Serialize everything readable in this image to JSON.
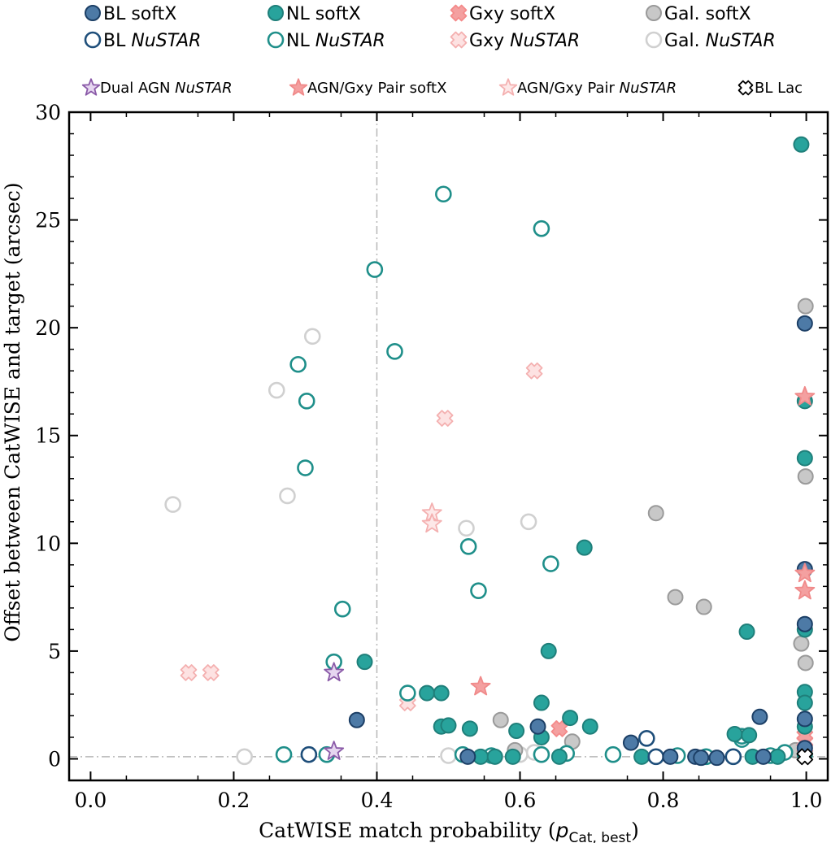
{
  "chart_data": {
    "type": "scatter",
    "title": "",
    "xlabel": "CatWISE match probability",
    "xlabel_symbol": "p",
    "xlabel_subscript": "Cat, best",
    "ylabel": "Offset between CatWISE and target (arcsec)",
    "xlim": [
      -0.03,
      1.03
    ],
    "ylim": [
      -1,
      30
    ],
    "x_ticks": [
      0.0,
      0.2,
      0.4,
      0.6,
      0.8,
      1.0
    ],
    "x_tick_labels": [
      "0.0",
      "0.2",
      "0.4",
      "0.6",
      "0.8",
      "1.0"
    ],
    "y_ticks": [
      0,
      5,
      10,
      15,
      20,
      25,
      30
    ],
    "y_tick_labels": [
      "0",
      "5",
      "10",
      "15",
      "20",
      "25",
      "30"
    ],
    "reference_lines": [
      {
        "orientation": "vertical",
        "value": 0.4,
        "style": "dash-dot"
      },
      {
        "orientation": "horizontal",
        "value": 0.1,
        "style": "dash-dot"
      }
    ],
    "legend": [
      {
        "row": 1,
        "label": "BL softX",
        "label_parts": [
          {
            "t": "BL softX"
          }
        ],
        "series": "bl_soft"
      },
      {
        "row": 1,
        "label": "NL softX",
        "label_parts": [
          {
            "t": "NL softX"
          }
        ],
        "series": "nl_soft"
      },
      {
        "row": 1,
        "label": "Gxy softX",
        "label_parts": [
          {
            "t": "Gxy softX"
          }
        ],
        "series": "gxy_soft"
      },
      {
        "row": 1,
        "label": "Gal. softX",
        "label_parts": [
          {
            "t": "Gal. softX"
          }
        ],
        "series": "gal_soft"
      },
      {
        "row": 2,
        "label": "BL NuSTAR",
        "label_parts": [
          {
            "t": "BL "
          },
          {
            "t": "NuSTAR",
            "i": true
          }
        ],
        "series": "bl_nustar"
      },
      {
        "row": 2,
        "label": "NL NuSTAR",
        "label_parts": [
          {
            "t": "NL "
          },
          {
            "t": "NuSTAR",
            "i": true
          }
        ],
        "series": "nl_nustar"
      },
      {
        "row": 2,
        "label": "Gxy NuSTAR",
        "label_parts": [
          {
            "t": "Gxy "
          },
          {
            "t": "NuSTAR",
            "i": true
          }
        ],
        "series": "gxy_nustar"
      },
      {
        "row": 2,
        "label": "Gal. NuSTAR",
        "label_parts": [
          {
            "t": "Gal. "
          },
          {
            "t": "NuSTAR",
            "i": true
          }
        ],
        "series": "gal_nustar"
      },
      {
        "row": 3,
        "label": "Dual AGN NuSTAR",
        "label_parts": [
          {
            "t": "Dual AGN "
          },
          {
            "t": "NuSTAR",
            "i": true
          }
        ],
        "series": "dual_nustar"
      },
      {
        "row": 3,
        "label": "AGN/Gxy Pair softX",
        "label_parts": [
          {
            "t": "AGN/Gxy Pair softX"
          }
        ],
        "series": "pair_soft"
      },
      {
        "row": 3,
        "label": "AGN/Gxy Pair NuSTAR",
        "label_parts": [
          {
            "t": "AGN/Gxy Pair "
          },
          {
            "t": "NuSTAR",
            "i": true
          }
        ],
        "series": "pair_nustar"
      },
      {
        "row": 3,
        "label": "BL Lac",
        "label_parts": [
          {
            "t": "BL Lac"
          }
        ],
        "series": "bllac"
      }
    ],
    "series": [
      {
        "id": "gal_nustar",
        "name": "Gal. NuSTAR",
        "marker": "circle",
        "filled": false,
        "edge": "#d0d0d0",
        "fill": "#ffffff",
        "points": [
          [
            0.115,
            11.8
          ],
          [
            0.215,
            0.1
          ],
          [
            0.26,
            17.1
          ],
          [
            0.275,
            12.2
          ],
          [
            0.31,
            19.6
          ],
          [
            0.5,
            0.15
          ],
          [
            0.525,
            10.7
          ],
          [
            0.612,
            11.0
          ],
          [
            0.6,
            0.2
          ],
          [
            0.62,
            0.3
          ]
        ]
      },
      {
        "id": "gal_soft",
        "name": "Gal. softX",
        "marker": "circle",
        "filled": true,
        "edge": "#9a9a9a",
        "fill": "#c8c8c8",
        "points": [
          [
            0.573,
            1.8
          ],
          [
            0.593,
            0.4
          ],
          [
            0.673,
            0.8
          ],
          [
            0.79,
            11.4
          ],
          [
            0.817,
            7.5
          ],
          [
            0.857,
            7.05
          ],
          [
            0.993,
            5.35
          ],
          [
            0.999,
            21.0
          ],
          [
            0.999,
            13.1
          ],
          [
            0.999,
            4.45
          ],
          [
            0.985,
            0.4
          ]
        ]
      },
      {
        "id": "gxy_nustar",
        "name": "Gxy NuSTAR",
        "marker": "x",
        "filled": false,
        "edge": "#f4b0b0",
        "fill": "#fde2e2",
        "points": [
          [
            0.137,
            4.0
          ],
          [
            0.168,
            4.0
          ],
          [
            0.443,
            2.6
          ],
          [
            0.495,
            15.8
          ],
          [
            0.62,
            18.0
          ],
          [
            0.998,
            0.8
          ]
        ]
      },
      {
        "id": "gxy_soft",
        "name": "Gxy softX",
        "marker": "x",
        "filled": true,
        "edge": "#f48a8a",
        "fill": "#f4a0a0",
        "points": [
          [
            0.655,
            1.4
          ],
          [
            0.998,
            1.1
          ],
          [
            0.998,
            0.5
          ]
        ]
      },
      {
        "id": "nl_nustar",
        "name": "NL NuSTAR",
        "marker": "circle",
        "filled": false,
        "edge": "#1f8f8a",
        "fill": "#ffffff",
        "points": [
          [
            0.27,
            0.2
          ],
          [
            0.33,
            0.2
          ],
          [
            0.397,
            22.7
          ],
          [
            0.425,
            18.9
          ],
          [
            0.29,
            18.3
          ],
          [
            0.302,
            16.6
          ],
          [
            0.3,
            13.5
          ],
          [
            0.352,
            6.95
          ],
          [
            0.34,
            4.5
          ],
          [
            0.443,
            3.05
          ],
          [
            0.493,
            26.2
          ],
          [
            0.63,
            24.6
          ],
          [
            0.528,
            9.85
          ],
          [
            0.542,
            7.8
          ],
          [
            0.643,
            9.05
          ],
          [
            0.52,
            0.2
          ],
          [
            0.56,
            0.15
          ],
          [
            0.63,
            0.2
          ],
          [
            0.665,
            0.25
          ],
          [
            0.73,
            0.2
          ],
          [
            0.82,
            0.15
          ],
          [
            0.86,
            0.1
          ],
          [
            0.91,
            0.9
          ],
          [
            0.91,
            1.05
          ],
          [
            0.95,
            0.15
          ],
          [
            0.97,
            0.3
          ]
        ]
      },
      {
        "id": "nl_soft",
        "name": "NL softX",
        "marker": "circle",
        "filled": true,
        "edge": "#1f7f7a",
        "fill": "#28a39c",
        "points": [
          [
            0.993,
            28.5
          ],
          [
            0.383,
            4.5
          ],
          [
            0.47,
            3.05
          ],
          [
            0.49,
            3.05
          ],
          [
            0.49,
            1.5
          ],
          [
            0.5,
            1.55
          ],
          [
            0.53,
            1.4
          ],
          [
            0.595,
            1.3
          ],
          [
            0.63,
            2.6
          ],
          [
            0.63,
            1.0
          ],
          [
            0.64,
            5.0
          ],
          [
            0.69,
            9.8
          ],
          [
            0.67,
            1.9
          ],
          [
            0.698,
            1.5
          ],
          [
            0.917,
            5.9
          ],
          [
            0.9,
            1.15
          ],
          [
            0.92,
            1.1
          ],
          [
            0.998,
            16.6
          ],
          [
            0.998,
            13.95
          ],
          [
            0.998,
            6.0
          ],
          [
            0.998,
            3.1
          ],
          [
            0.998,
            2.6
          ],
          [
            0.998,
            1.5
          ],
          [
            0.998,
            0.2
          ],
          [
            0.545,
            0.1
          ],
          [
            0.565,
            0.1
          ],
          [
            0.59,
            0.1
          ],
          [
            0.655,
            0.1
          ],
          [
            0.77,
            0.1
          ],
          [
            0.925,
            0.1
          ],
          [
            0.96,
            0.1
          ]
        ]
      },
      {
        "id": "bl_nustar",
        "name": "BL NuSTAR",
        "marker": "circle",
        "filled": false,
        "edge": "#1e4e7a",
        "fill": "#ffffff",
        "points": [
          [
            0.305,
            0.2
          ],
          [
            0.777,
            0.95
          ],
          [
            0.79,
            0.1
          ],
          [
            0.898,
            0.1
          ]
        ]
      },
      {
        "id": "bl_soft",
        "name": "BL softX",
        "marker": "circle",
        "filled": true,
        "edge": "#1c3f66",
        "fill": "#4d7aa6",
        "points": [
          [
            0.372,
            1.8
          ],
          [
            0.527,
            0.1
          ],
          [
            0.625,
            1.5
          ],
          [
            0.755,
            0.75
          ],
          [
            0.81,
            0.1
          ],
          [
            0.845,
            0.1
          ],
          [
            0.853,
            0.05
          ],
          [
            0.875,
            0.05
          ],
          [
            0.935,
            1.95
          ],
          [
            0.94,
            0.1
          ],
          [
            0.998,
            20.2
          ],
          [
            0.998,
            8.8
          ],
          [
            0.998,
            6.25
          ],
          [
            0.998,
            1.85
          ],
          [
            0.998,
            0.5
          ]
        ]
      },
      {
        "id": "dual_nustar",
        "name": "Dual AGN NuSTAR",
        "marker": "star",
        "filled": true,
        "edge": "#8a5aa8",
        "fill": "#e6d6f0",
        "points": [
          [
            0.34,
            4.0
          ],
          [
            0.34,
            0.35
          ]
        ]
      },
      {
        "id": "pair_soft",
        "name": "AGN/Gxy Pair softX",
        "marker": "star",
        "filled": true,
        "edge": "#f08a8a",
        "fill": "#f4a0a0",
        "points": [
          [
            0.545,
            3.35
          ],
          [
            0.998,
            16.8
          ],
          [
            0.998,
            8.6
          ],
          [
            0.998,
            7.8
          ]
        ]
      },
      {
        "id": "pair_nustar",
        "name": "AGN/Gxy Pair NuSTAR",
        "marker": "star",
        "filled": false,
        "edge": "#f4b0b0",
        "fill": "#fde8e8",
        "points": [
          [
            0.477,
            11.4
          ],
          [
            0.477,
            10.9
          ]
        ]
      },
      {
        "id": "bllac",
        "name": "BL Lac",
        "marker": "x",
        "filled": true,
        "edge": "#000000",
        "fill": "#ffffff",
        "points": [
          [
            0.998,
            0.1
          ]
        ]
      }
    ]
  }
}
